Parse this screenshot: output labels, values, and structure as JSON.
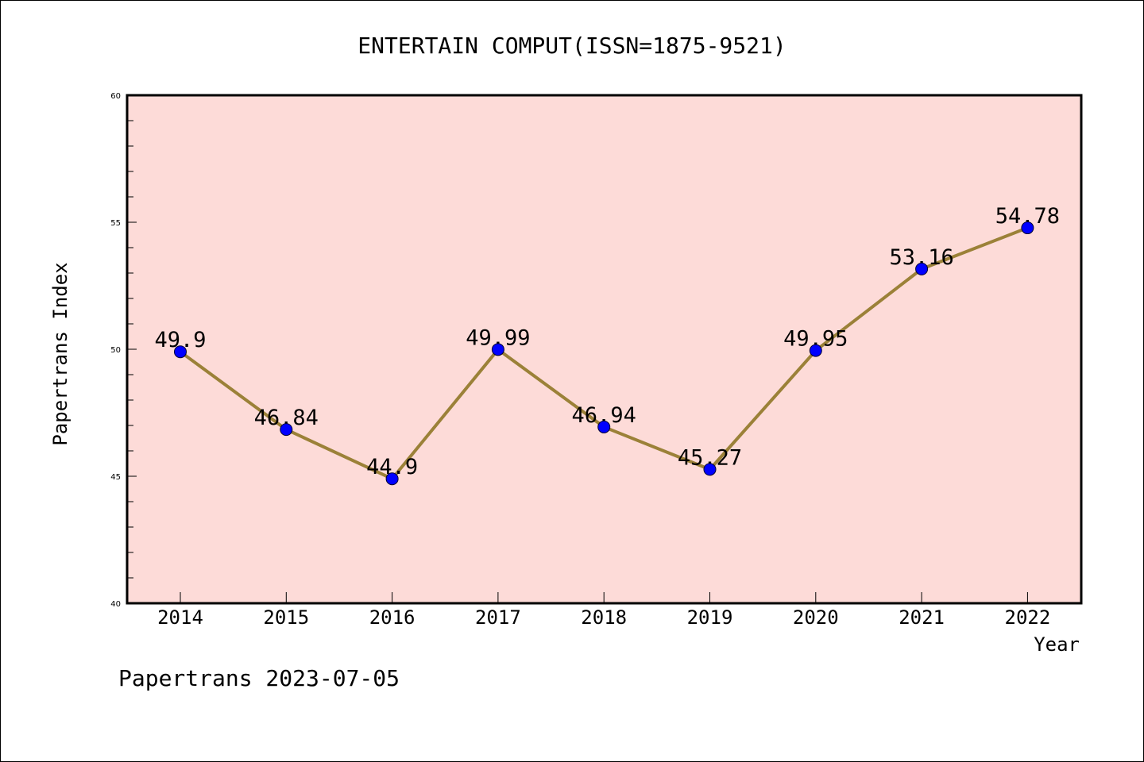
{
  "colors": {
    "plot_background": "#fddbd8",
    "line": "#9b8138",
    "marker": "#0000ff",
    "axis": "#000000"
  },
  "footer": "Papertrans 2023-07-05",
  "chart_data": {
    "type": "line",
    "title": "ENTERTAIN COMPUT(ISSN=1875-9521)",
    "xlabel": "Year",
    "ylabel": "Papertrans Index",
    "categories": [
      "2014",
      "2015",
      "2016",
      "2017",
      "2018",
      "2019",
      "2020",
      "2021",
      "2022"
    ],
    "series": [
      {
        "values": [
          49.9,
          46.84,
          44.9,
          49.99,
          46.94,
          45.27,
          49.95,
          53.16,
          54.78
        ],
        "data_labels": [
          "49.9",
          "46.84",
          "44.9",
          "49.99",
          "46.94",
          "45.27",
          "49.95",
          "53.16",
          "54.78"
        ]
      }
    ],
    "ylim": [
      40,
      60
    ],
    "yticks": [
      "40",
      "45",
      "50",
      "55",
      "60"
    ],
    "grid": false,
    "legend": false
  }
}
